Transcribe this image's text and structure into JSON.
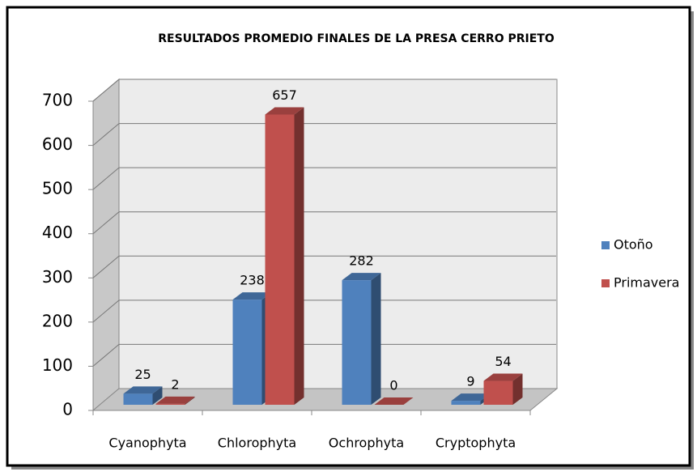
{
  "chart_data": {
    "type": "bar3d",
    "title": "RESULTADOS PROMEDIO FINALES DE LA PRESA CERRO PRIETO",
    "categories": [
      "Cyanophyta",
      "Chlorophyta",
      "Ochrophyta",
      "Cryptophyta"
    ],
    "series": [
      {
        "name": "Otoño",
        "color": "#4f81bd",
        "values": [
          25,
          238,
          282,
          9
        ]
      },
      {
        "name": "Primavera",
        "color": "#c0504d",
        "values": [
          2,
          657,
          0,
          54
        ]
      }
    ],
    "ylim": [
      0,
      700
    ],
    "yticks": [
      0,
      100,
      200,
      300,
      400,
      500,
      600,
      700
    ],
    "grid": true,
    "legend": "right"
  }
}
